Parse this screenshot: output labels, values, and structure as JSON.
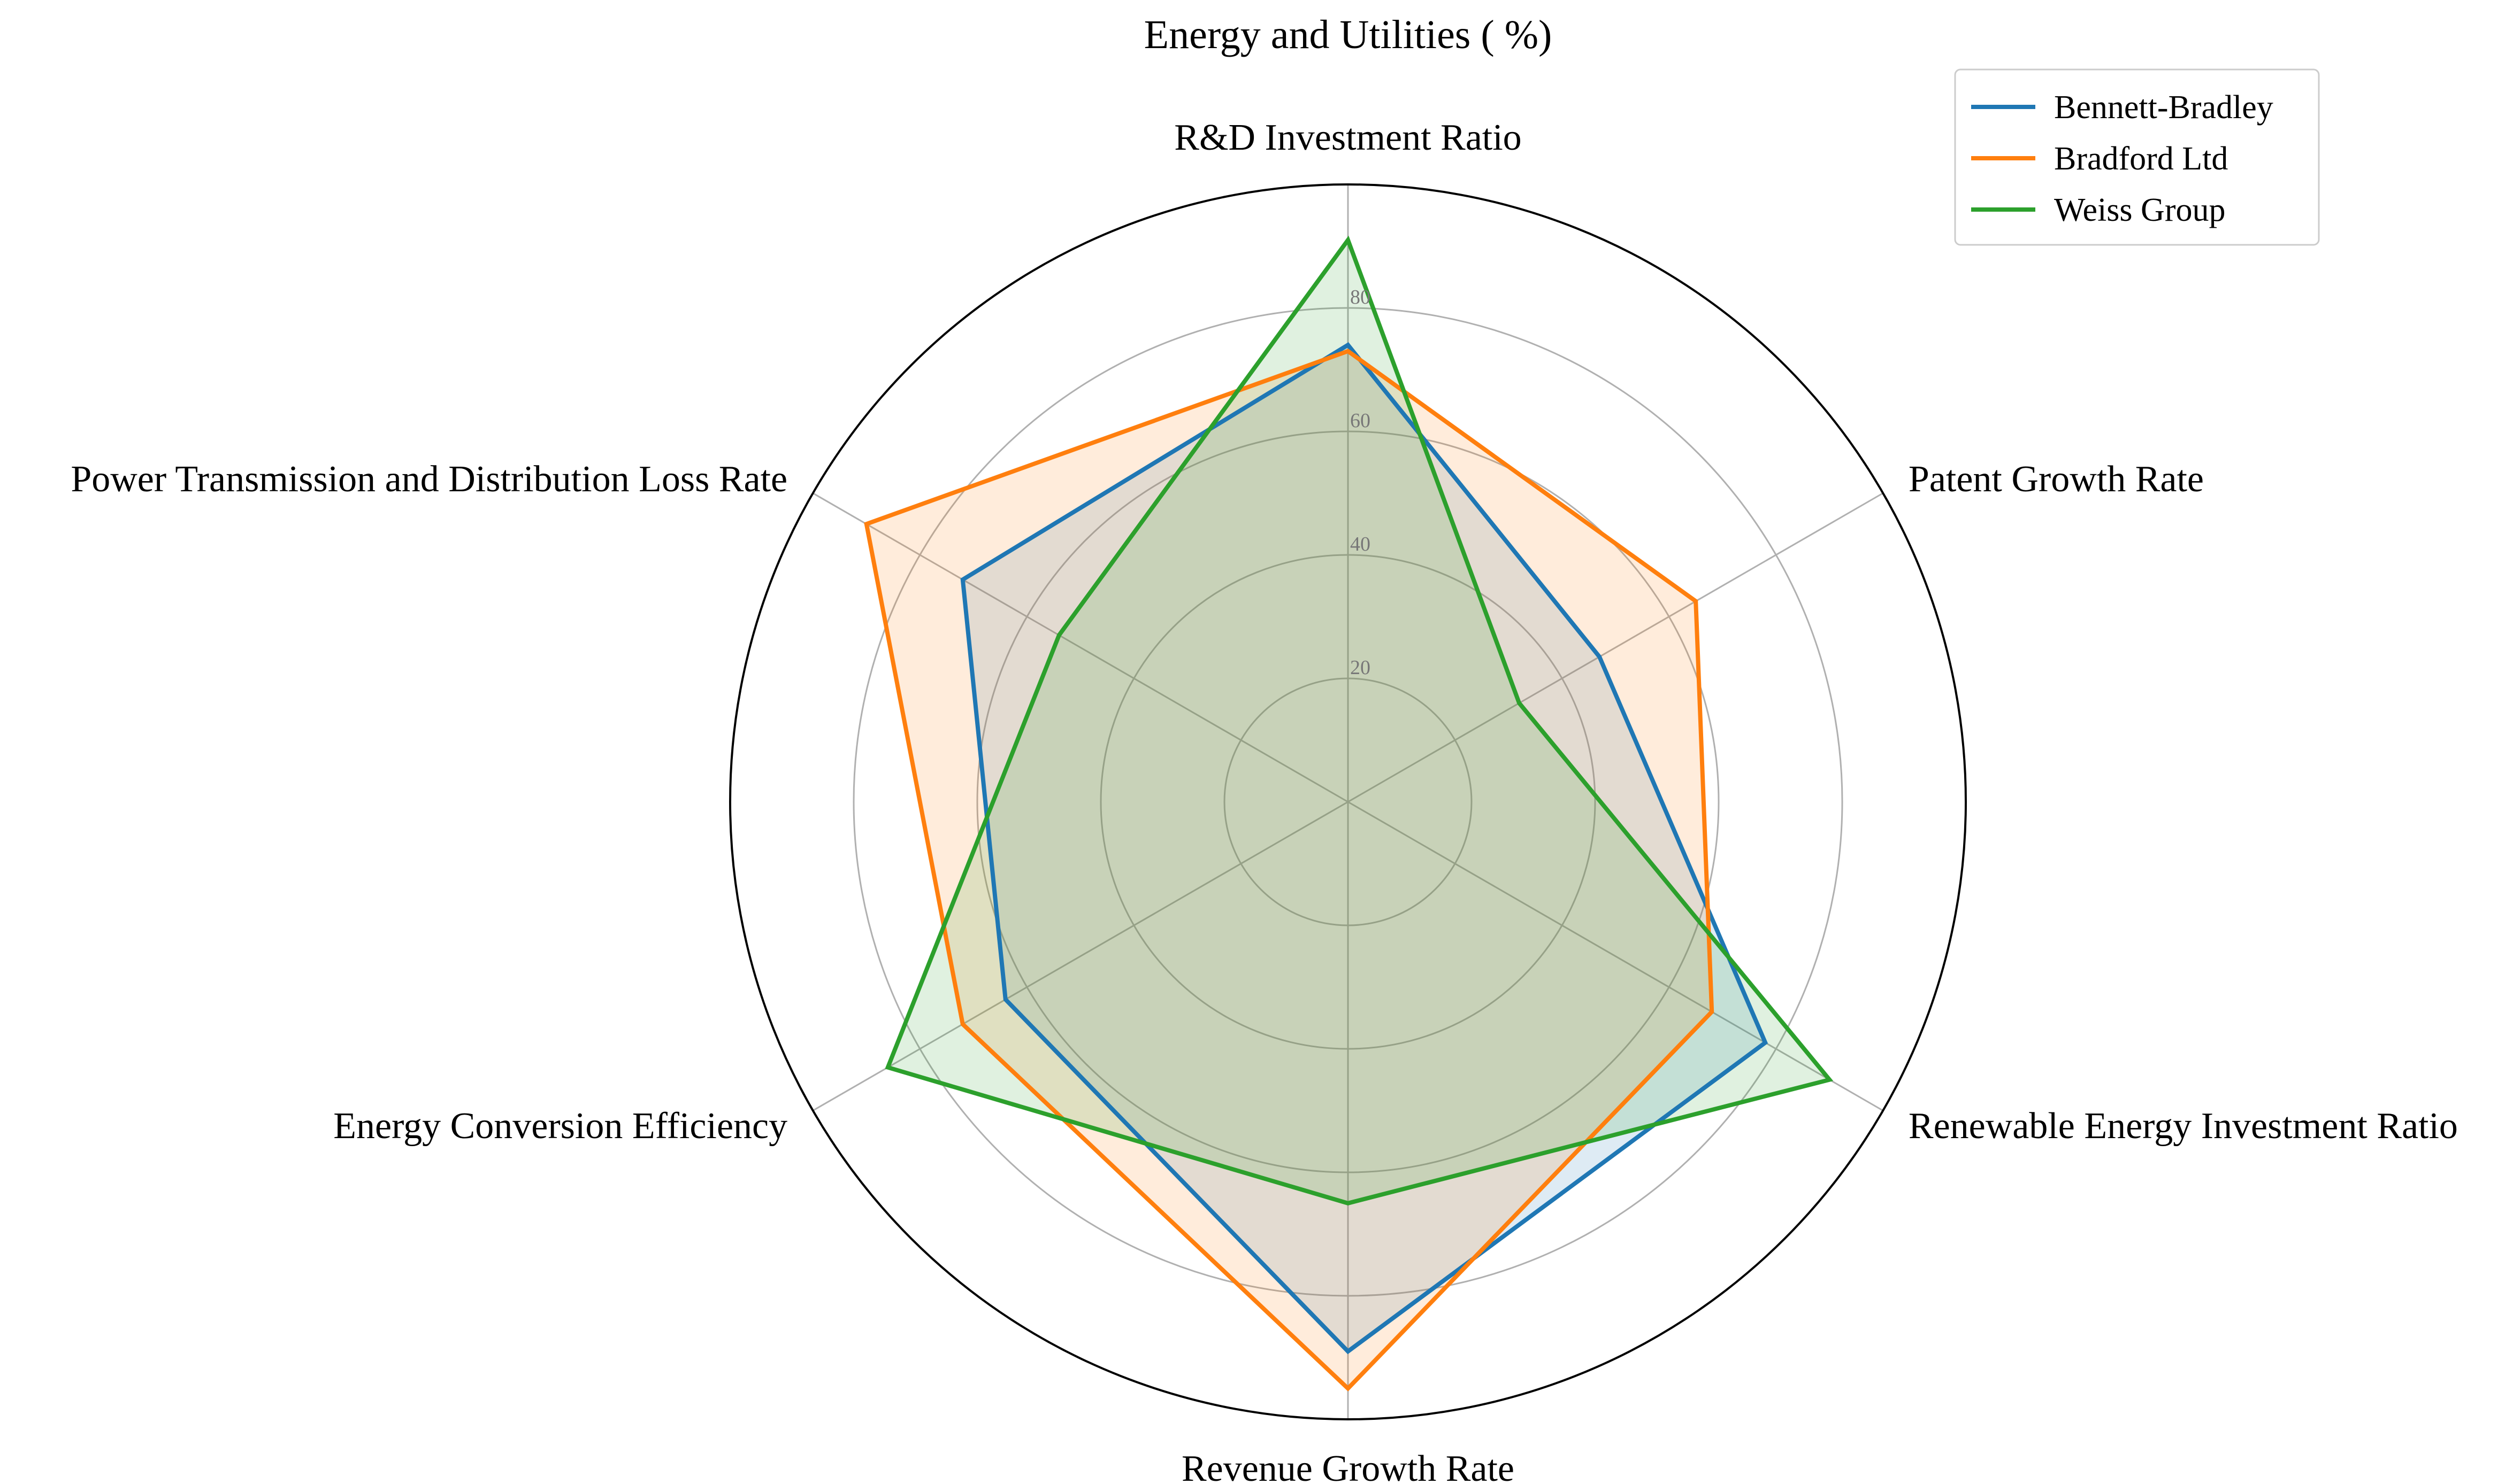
{
  "chart_data": {
    "type": "radar",
    "title": "Energy and Utilities ( %)",
    "axes": [
      "R&D Investment Ratio",
      "Patent Growth Rate",
      "Renewable Energy Investment Ratio",
      "Revenue Growth Rate",
      "Energy Conversion Efficiency",
      "Power Transmission and Distribution Loss Rate"
    ],
    "radial_ticks": [
      20,
      40,
      60,
      80
    ],
    "rlim": [
      0,
      100
    ],
    "grid": true,
    "legend_position": "top-right",
    "series": [
      {
        "name": "Bennett-Bradley",
        "color": "#1f77b4",
        "values": [
          74,
          47,
          78,
          89,
          64,
          72
        ]
      },
      {
        "name": "Bradford Ltd",
        "color": "#ff7f0e",
        "values": [
          73,
          65,
          68,
          95,
          72,
          90
        ]
      },
      {
        "name": "Weiss Group",
        "color": "#2ca02c",
        "values": [
          91,
          32,
          90,
          65,
          86,
          54
        ]
      }
    ]
  }
}
